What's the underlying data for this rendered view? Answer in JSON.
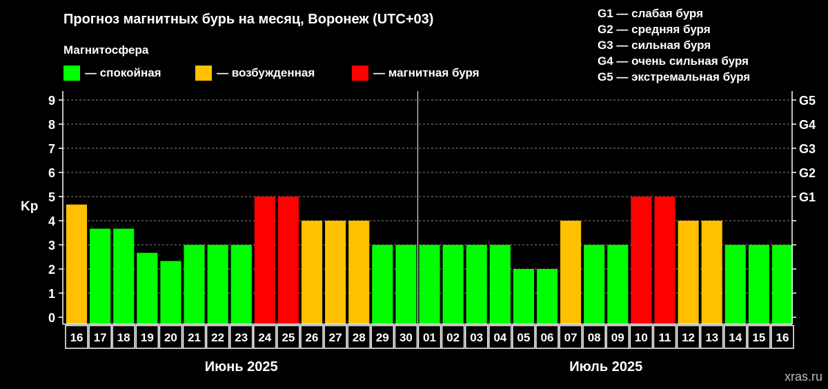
{
  "chart_data": {
    "type": "bar",
    "title": "Прогноз магнитных бурь на месяц, Воронеж (UTC+03)",
    "ylabel": "Kp",
    "ylim": [
      0,
      9
    ],
    "yticks": [
      0,
      1,
      2,
      3,
      4,
      5,
      6,
      7,
      8,
      9
    ],
    "grid": "horizontal dashed",
    "legend_title": "Магнитосфера",
    "legend": [
      {
        "label": "— спокойная",
        "color": "#00ff00"
      },
      {
        "label": "— возбужденная",
        "color": "#ffc000"
      },
      {
        "label": "— магнитная буря",
        "color": "#ff0000"
      }
    ],
    "g_scale_legend": [
      "G1 — слабая буря",
      "G2 — средняя буря",
      "G3 — сильная буря",
      "G4 — очень сильная буря",
      "G5 — экстремальная буря"
    ],
    "right_axis": [
      {
        "label": "G1",
        "kp": 5
      },
      {
        "label": "G2",
        "kp": 6
      },
      {
        "label": "G3",
        "kp": 7
      },
      {
        "label": "G4",
        "kp": 8
      },
      {
        "label": "G5",
        "kp": 9
      }
    ],
    "months": [
      {
        "label": "Июнь 2025",
        "categories": [
          "16",
          "17",
          "18",
          "19",
          "20",
          "21",
          "22",
          "23",
          "24",
          "25",
          "26",
          "27",
          "28",
          "29",
          "30"
        ]
      },
      {
        "label": "Июль 2025",
        "categories": [
          "01",
          "02",
          "03",
          "04",
          "05",
          "06",
          "07",
          "08",
          "09",
          "10",
          "11",
          "12",
          "13",
          "14",
          "15",
          "16"
        ]
      }
    ],
    "categories": [
      "16",
      "17",
      "18",
      "19",
      "20",
      "21",
      "22",
      "23",
      "24",
      "25",
      "26",
      "27",
      "28",
      "29",
      "30",
      "01",
      "02",
      "03",
      "04",
      "05",
      "06",
      "07",
      "08",
      "09",
      "10",
      "11",
      "12",
      "13",
      "14",
      "15",
      "16"
    ],
    "values": [
      4.67,
      3.67,
      3.67,
      2.67,
      2.33,
      3,
      3,
      3,
      5,
      5,
      4,
      4,
      4,
      3,
      3,
      3,
      3,
      3,
      3,
      2,
      2,
      4,
      3,
      3,
      5,
      5,
      4,
      4,
      3,
      3,
      3
    ],
    "colors": {
      "quiet": "#00ff00",
      "active": "#ffc000",
      "storm": "#ff0000",
      "background": "#000000",
      "grid": "#8c8c8c"
    }
  },
  "watermark": "xras.ru"
}
